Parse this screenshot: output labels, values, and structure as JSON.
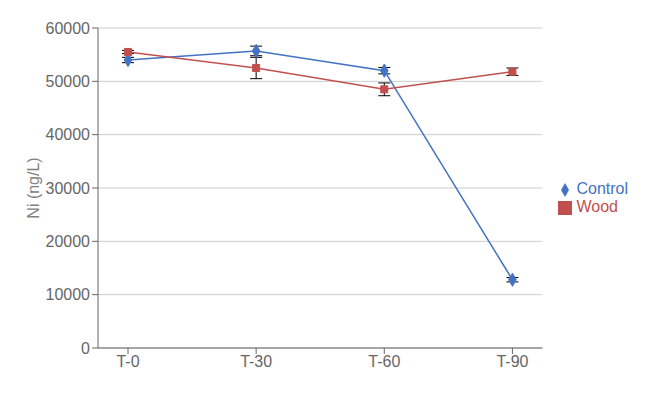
{
  "chart_data": {
    "type": "line",
    "categories": [
      "T-0",
      "T-30",
      "T-60",
      "T-90"
    ],
    "series": [
      {
        "name": "Control",
        "color": "#4472C4",
        "marker": "diamond",
        "values": [
          54000,
          55700,
          52000,
          12800
        ],
        "yerr": [
          500,
          900,
          600,
          400
        ]
      },
      {
        "name": "Wood",
        "color": "#C0504D",
        "marker": "square",
        "values": [
          55500,
          52500,
          48500,
          51800
        ],
        "yerr": [
          300,
          2000,
          1200,
          700
        ]
      }
    ],
    "ylabel": "Ni (ng/L)",
    "ylim": [
      0,
      60000
    ],
    "yticks": [
      0,
      10000,
      20000,
      30000,
      40000,
      50000,
      60000
    ],
    "grid": true,
    "legend": "right"
  }
}
